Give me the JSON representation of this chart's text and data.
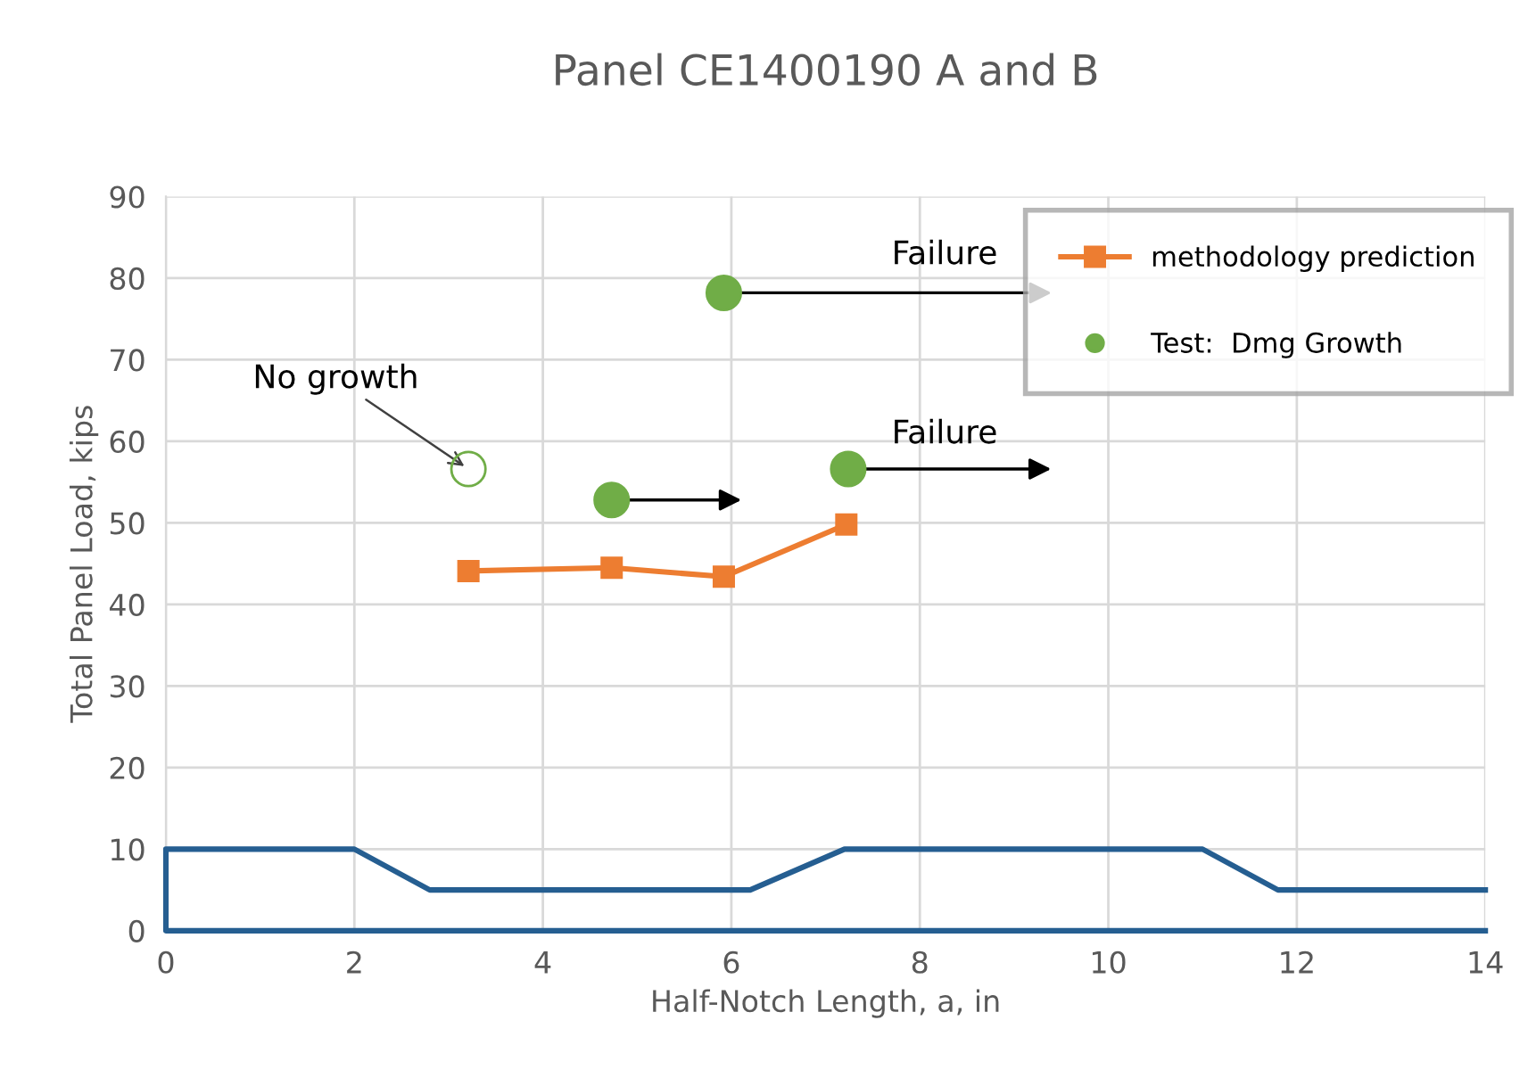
{
  "chart_data": {
    "type": "line",
    "title": "Panel CE1400190 A and B",
    "xlabel": "Half-Notch Length, a, in",
    "ylabel": "Total Panel Load, kips",
    "xlim": [
      0,
      14
    ],
    "xticks": [
      0,
      2,
      4,
      6,
      8,
      10,
      12,
      14
    ],
    "ylim": [
      0,
      90
    ],
    "yticks": [
      0,
      10,
      20,
      30,
      40,
      50,
      60,
      70,
      80,
      90
    ],
    "grid": true,
    "legend": "top right",
    "series": [
      {
        "color": "#255e91",
        "x": [
          14,
          0,
          0,
          2,
          2.8,
          6.2,
          7.2,
          11,
          11.8,
          14
        ],
        "values": [
          0,
          0,
          10,
          10,
          5,
          5,
          10,
          10,
          5,
          5
        ],
        "marker": "none"
      },
      {
        "name": "methodology prediction",
        "color": "#ed7d31",
        "x": [
          3.21,
          4.73,
          5.92,
          7.22
        ],
        "values": [
          44.1,
          44.5,
          43.4,
          49.8
        ],
        "marker": "square"
      },
      {
        "type": "scatter",
        "name": "Test:  Dmg Growth",
        "color": "#70ad47",
        "x": [
          5.92,
          4.73,
          7.24
        ],
        "values": [
          78.2,
          52.8,
          56.6
        ],
        "marker": "circle"
      },
      {
        "type": "scatter",
        "color": "#70ad47",
        "x": [
          3.21
        ],
        "values": [
          56.6
        ],
        "marker": "circle"
      }
    ],
    "annotations": [
      "Failure",
      "Failure",
      {
        "text": "No growth",
        "x": 3.21,
        "y": 56.6
      }
    ]
  }
}
